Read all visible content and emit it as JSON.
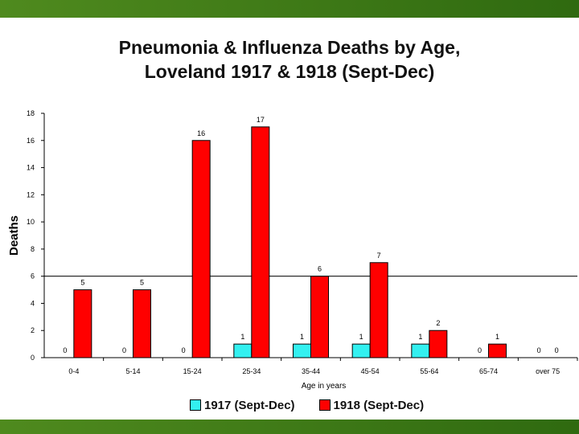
{
  "title_line1": "Pneumonia & Influenza Deaths by Age,",
  "title_line2": "Loveland 1917 & 1918 (Sept-Dec)",
  "chart_data": {
    "type": "bar",
    "title": "Pneumonia & Influenza Deaths by Age, Loveland 1917 & 1918 (Sept-Dec)",
    "xlabel": "Age in years",
    "ylabel": "Deaths",
    "ylim": [
      0,
      18
    ],
    "yticks": [
      0,
      2,
      4,
      6,
      8,
      10,
      12,
      14,
      16,
      18
    ],
    "reference_line": 6,
    "grid": false,
    "legend_position": "bottom",
    "categories": [
      "0-4",
      "5-14",
      "15-24",
      "25-34",
      "35-44",
      "45-54",
      "55-64",
      "65-74",
      "over 75"
    ],
    "series": [
      {
        "name": "1917 (Sept-Dec)",
        "color": "#33f0f0",
        "values": [
          0,
          0,
          0,
          1,
          1,
          1,
          1,
          0,
          0
        ]
      },
      {
        "name": "1918 (Sept-Dec)",
        "color": "#ff0000",
        "values": [
          5,
          5,
          16,
          17,
          6,
          7,
          2,
          1,
          0
        ]
      }
    ]
  }
}
